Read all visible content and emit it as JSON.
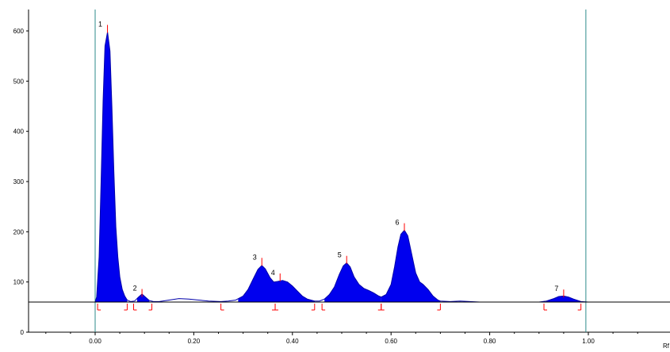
{
  "chart_data": {
    "type": "area",
    "title": "",
    "xlabel": "Rf",
    "ylabel": "",
    "xlim": [
      -0.13,
      1.16
    ],
    "ylim": [
      0,
      640
    ],
    "x_ticks": [
      0.0,
      0.2,
      0.4,
      0.6,
      0.8,
      1.0
    ],
    "x_tick_labels": [
      "0.00",
      "0.20",
      "0.40",
      "0.60",
      "0.80",
      "1.00"
    ],
    "y_ticks": [
      0,
      100,
      200,
      300,
      400,
      500,
      600
    ],
    "y_tick_labels": [
      "0",
      "100",
      "200",
      "300",
      "400",
      "500",
      "600"
    ],
    "baseline": 60,
    "start_line_x": 0.0,
    "front_line_x": 0.995,
    "grid": false,
    "legend": "none",
    "colors": {
      "fill": "#0000ee",
      "outline": "#0000aa",
      "baseline": "#000000",
      "reference_lines": "#2e8b8b",
      "markers": "#ff0000",
      "axis": "#000000",
      "text": "#000000"
    },
    "peaks": [
      {
        "label": "1",
        "rf": 0.025,
        "height": 612,
        "start": 0.005,
        "end": 0.065
      },
      {
        "label": "2",
        "rf": 0.095,
        "height": 86,
        "start": 0.078,
        "end": 0.115
      },
      {
        "label": "3",
        "rf": 0.338,
        "height": 148,
        "start": 0.255,
        "end": 0.365
      },
      {
        "label": "4",
        "rf": 0.375,
        "height": 117,
        "start": 0.365,
        "end": 0.445
      },
      {
        "label": "5",
        "rf": 0.51,
        "height": 152,
        "start": 0.46,
        "end": 0.58
      },
      {
        "label": "6",
        "rf": 0.627,
        "height": 217,
        "start": 0.58,
        "end": 0.7
      },
      {
        "label": "7",
        "rf": 0.95,
        "height": 85,
        "start": 0.91,
        "end": 0.985
      }
    ],
    "trace": [
      {
        "x": -0.13,
        "y": 60
      },
      {
        "x": 0.0,
        "y": 60
      },
      {
        "x": 0.003,
        "y": 70
      },
      {
        "x": 0.008,
        "y": 150
      },
      {
        "x": 0.012,
        "y": 300
      },
      {
        "x": 0.016,
        "y": 460
      },
      {
        "x": 0.02,
        "y": 570
      },
      {
        "x": 0.025,
        "y": 598
      },
      {
        "x": 0.03,
        "y": 560
      },
      {
        "x": 0.034,
        "y": 450
      },
      {
        "x": 0.038,
        "y": 320
      },
      {
        "x": 0.042,
        "y": 210
      },
      {
        "x": 0.046,
        "y": 150
      },
      {
        "x": 0.05,
        "y": 110
      },
      {
        "x": 0.055,
        "y": 85
      },
      {
        "x": 0.06,
        "y": 72
      },
      {
        "x": 0.065,
        "y": 64
      },
      {
        "x": 0.072,
        "y": 61
      },
      {
        "x": 0.08,
        "y": 62
      },
      {
        "x": 0.088,
        "y": 70
      },
      {
        "x": 0.095,
        "y": 76
      },
      {
        "x": 0.102,
        "y": 70
      },
      {
        "x": 0.11,
        "y": 63
      },
      {
        "x": 0.118,
        "y": 61
      },
      {
        "x": 0.13,
        "y": 61
      },
      {
        "x": 0.15,
        "y": 64
      },
      {
        "x": 0.17,
        "y": 67
      },
      {
        "x": 0.19,
        "y": 66
      },
      {
        "x": 0.21,
        "y": 64
      },
      {
        "x": 0.23,
        "y": 62
      },
      {
        "x": 0.255,
        "y": 61
      },
      {
        "x": 0.27,
        "y": 62
      },
      {
        "x": 0.285,
        "y": 64
      },
      {
        "x": 0.3,
        "y": 72
      },
      {
        "x": 0.31,
        "y": 85
      },
      {
        "x": 0.32,
        "y": 105
      },
      {
        "x": 0.33,
        "y": 125
      },
      {
        "x": 0.338,
        "y": 133
      },
      {
        "x": 0.345,
        "y": 126
      },
      {
        "x": 0.355,
        "y": 108
      },
      {
        "x": 0.362,
        "y": 100
      },
      {
        "x": 0.37,
        "y": 101
      },
      {
        "x": 0.38,
        "y": 103
      },
      {
        "x": 0.39,
        "y": 100
      },
      {
        "x": 0.4,
        "y": 92
      },
      {
        "x": 0.41,
        "y": 82
      },
      {
        "x": 0.42,
        "y": 72
      },
      {
        "x": 0.43,
        "y": 66
      },
      {
        "x": 0.445,
        "y": 62
      },
      {
        "x": 0.455,
        "y": 62
      },
      {
        "x": 0.465,
        "y": 66
      },
      {
        "x": 0.475,
        "y": 75
      },
      {
        "x": 0.485,
        "y": 90
      },
      {
        "x": 0.495,
        "y": 115
      },
      {
        "x": 0.503,
        "y": 132
      },
      {
        "x": 0.51,
        "y": 138
      },
      {
        "x": 0.517,
        "y": 130
      },
      {
        "x": 0.525,
        "y": 110
      },
      {
        "x": 0.535,
        "y": 95
      },
      {
        "x": 0.545,
        "y": 87
      },
      {
        "x": 0.555,
        "y": 83
      },
      {
        "x": 0.565,
        "y": 78
      },
      {
        "x": 0.575,
        "y": 72
      },
      {
        "x": 0.58,
        "y": 70
      },
      {
        "x": 0.59,
        "y": 75
      },
      {
        "x": 0.6,
        "y": 95
      },
      {
        "x": 0.607,
        "y": 130
      },
      {
        "x": 0.614,
        "y": 170
      },
      {
        "x": 0.62,
        "y": 195
      },
      {
        "x": 0.627,
        "y": 203
      },
      {
        "x": 0.634,
        "y": 192
      },
      {
        "x": 0.642,
        "y": 155
      },
      {
        "x": 0.65,
        "y": 118
      },
      {
        "x": 0.658,
        "y": 100
      },
      {
        "x": 0.665,
        "y": 95
      },
      {
        "x": 0.675,
        "y": 85
      },
      {
        "x": 0.685,
        "y": 72
      },
      {
        "x": 0.695,
        "y": 64
      },
      {
        "x": 0.7,
        "y": 62
      },
      {
        "x": 0.72,
        "y": 61
      },
      {
        "x": 0.74,
        "y": 62
      },
      {
        "x": 0.76,
        "y": 61
      },
      {
        "x": 0.78,
        "y": 60
      },
      {
        "x": 0.9,
        "y": 60
      },
      {
        "x": 0.915,
        "y": 62
      },
      {
        "x": 0.93,
        "y": 67
      },
      {
        "x": 0.94,
        "y": 71
      },
      {
        "x": 0.95,
        "y": 72
      },
      {
        "x": 0.96,
        "y": 70
      },
      {
        "x": 0.97,
        "y": 66
      },
      {
        "x": 0.985,
        "y": 61
      },
      {
        "x": 1.0,
        "y": 60
      },
      {
        "x": 1.16,
        "y": 60
      }
    ],
    "filled_ranges": [
      [
        0.0,
        0.065
      ],
      [
        0.085,
        0.11
      ],
      [
        0.29,
        0.445
      ],
      [
        0.465,
        0.58
      ],
      [
        0.58,
        0.7
      ],
      [
        0.915,
        0.985
      ]
    ]
  }
}
